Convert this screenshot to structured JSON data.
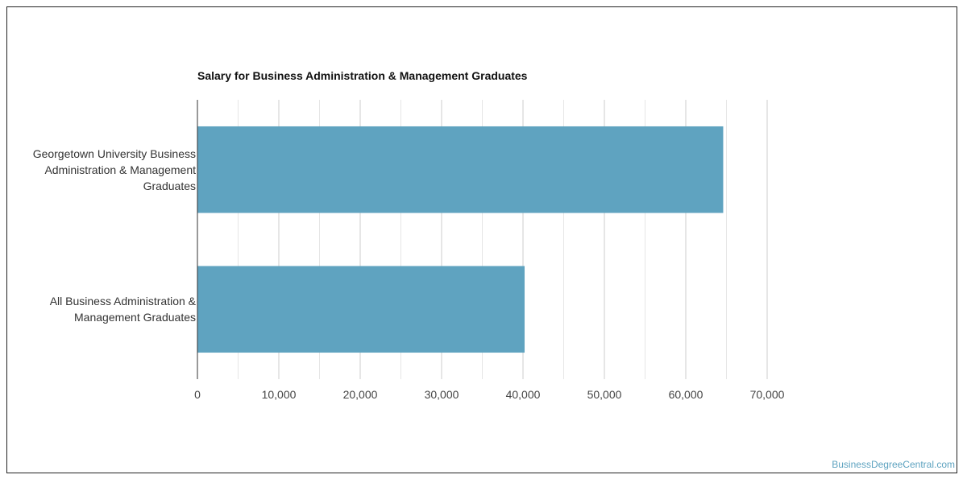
{
  "chart_data": {
    "type": "bar",
    "orientation": "horizontal",
    "title": "Salary for Business Administration & Management Graduates",
    "categories": [
      "Georgetown University Business Administration & Management Graduates",
      "All Business Administration & Management Graduates"
    ],
    "values": [
      64600,
      40200
    ],
    "xlim": [
      0,
      70000
    ],
    "xticks": [
      "0",
      "10,000",
      "20,000",
      "30,000",
      "40,000",
      "50,000",
      "60,000",
      "70,000"
    ],
    "grid": true,
    "bar_color": "#5fa3c0"
  },
  "watermark": "BusinessDegreeCentral.com"
}
